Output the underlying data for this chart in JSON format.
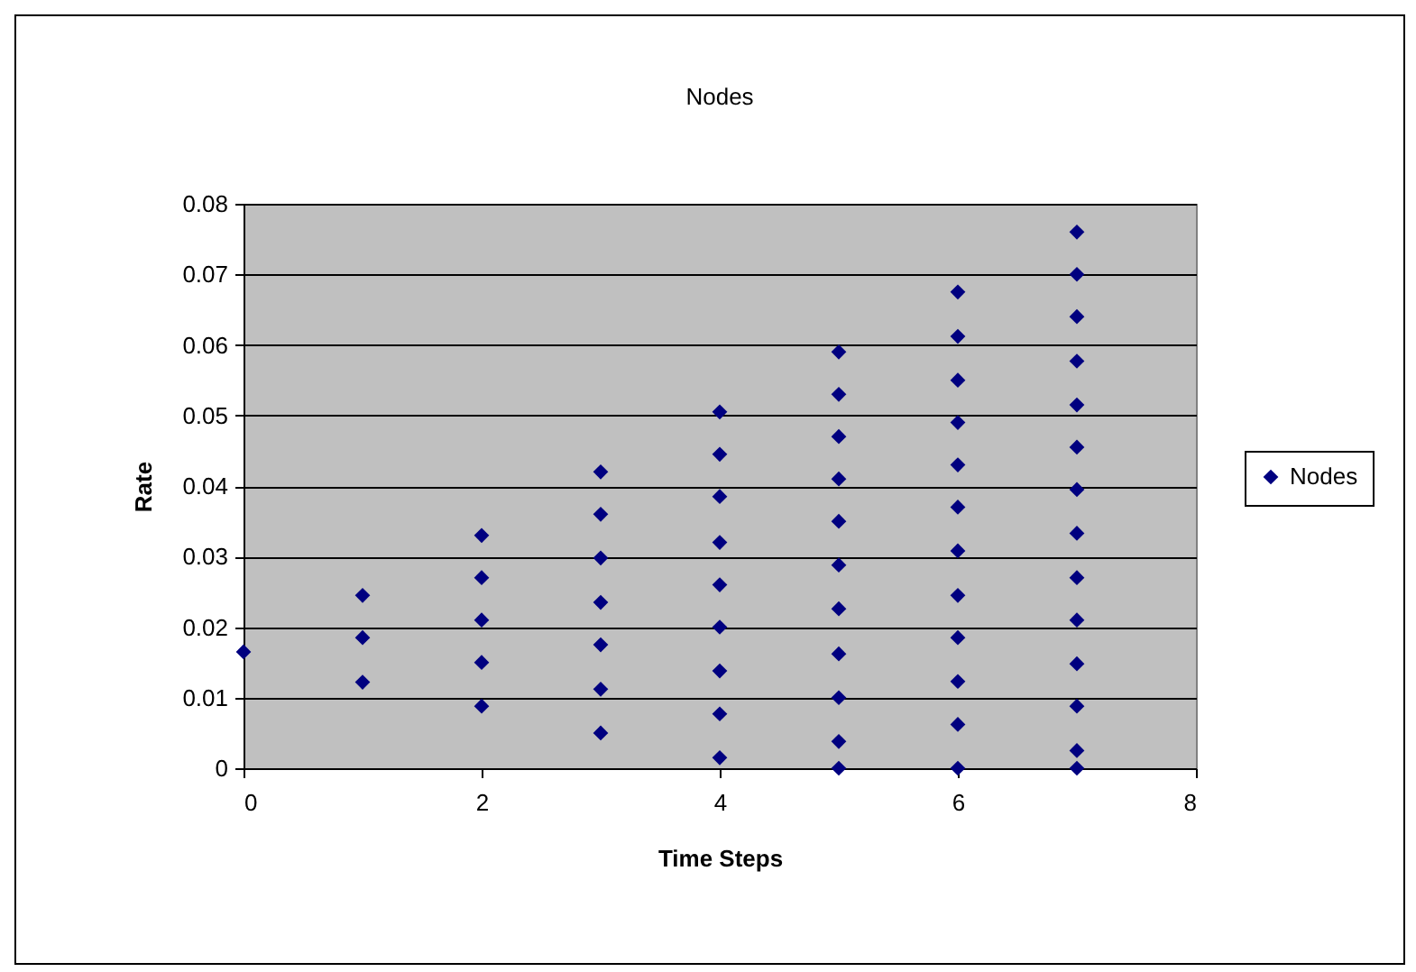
{
  "chart_data": {
    "type": "scatter",
    "title": "Nodes",
    "xlabel": "Time Steps",
    "ylabel": "Rate",
    "xlim": [
      0,
      8
    ],
    "xticks": [
      0,
      2,
      4,
      6,
      8
    ],
    "ylim": [
      0,
      0.08
    ],
    "yticks": [
      0,
      0.01,
      0.02,
      0.03,
      0.04,
      0.05,
      0.06,
      0.07,
      0.08
    ],
    "grid": "y",
    "legend": "right",
    "marker": "diamond",
    "series": [
      {
        "name": "Nodes",
        "color": "#000080",
        "x": [
          0,
          1,
          1,
          1,
          2,
          2,
          2,
          2,
          2,
          3,
          3,
          3,
          3,
          3,
          3,
          3,
          4,
          4,
          4,
          4,
          4,
          4,
          4,
          4,
          4,
          5,
          5,
          5,
          5,
          5,
          5,
          5,
          5,
          5,
          5,
          5,
          6,
          6,
          6,
          6,
          6,
          6,
          6,
          6,
          6,
          6,
          6,
          6,
          7,
          7,
          7,
          7,
          7,
          7,
          7,
          7,
          7,
          7,
          7,
          7,
          7,
          7
        ],
        "values": [
          0.0165,
          0.0245,
          0.0185,
          0.0122,
          0.033,
          0.027,
          0.021,
          0.015,
          0.0088,
          0.042,
          0.036,
          0.0298,
          0.0235,
          0.0175,
          0.0112,
          0.005,
          0.0505,
          0.0445,
          0.0385,
          0.032,
          0.026,
          0.02,
          0.0138,
          0.0077,
          0.0015,
          0.059,
          0.053,
          0.047,
          0.041,
          0.035,
          0.0288,
          0.0226,
          0.0162,
          0.01,
          0.0038,
          0,
          0.0675,
          0.0612,
          0.055,
          0.049,
          0.043,
          0.037,
          0.0308,
          0.0245,
          0.0185,
          0.0123,
          0.0062,
          0,
          0.076,
          0.07,
          0.064,
          0.0577,
          0.0515,
          0.0455,
          0.0395,
          0.0333,
          0.027,
          0.021,
          0.0148,
          0.0088,
          0.0025,
          0
        ]
      }
    ]
  }
}
